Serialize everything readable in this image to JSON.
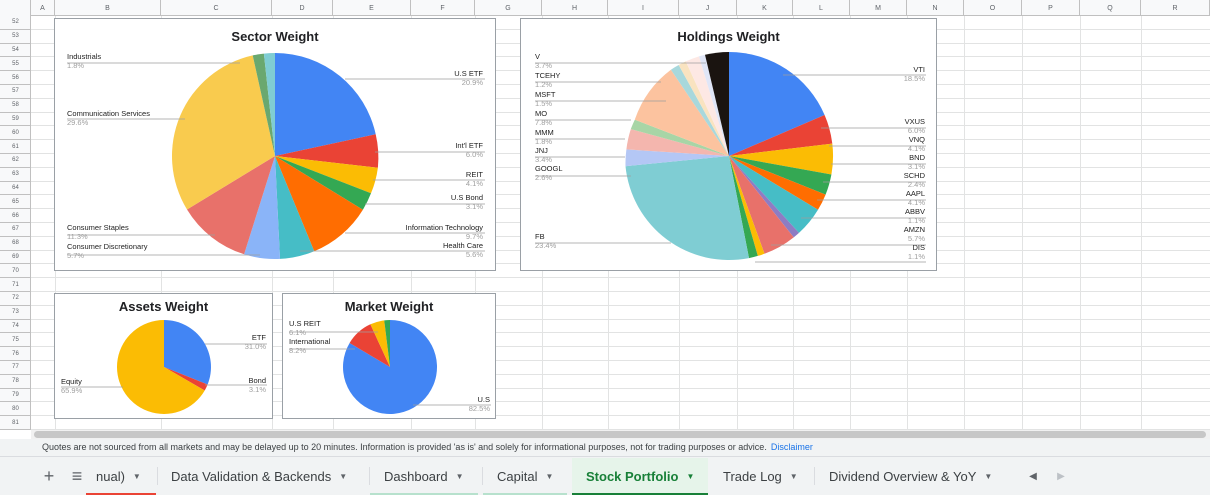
{
  "columns": [
    "A",
    "B",
    "C",
    "D",
    "E",
    "F",
    "G",
    "H",
    "I",
    "J",
    "K",
    "L",
    "M",
    "N",
    "O",
    "P",
    "Q",
    "R"
  ],
  "rows": [
    "52",
    "53",
    "54",
    "55",
    "56",
    "57",
    "58",
    "59",
    "60",
    "61",
    "62",
    "63",
    "64",
    "65",
    "66",
    "67",
    "68",
    "69",
    "70",
    "71",
    "72",
    "73",
    "74",
    "75",
    "76",
    "77",
    "78",
    "79",
    "80",
    "81"
  ],
  "charts": {
    "sector": {
      "title": "Sector Weight",
      "labels": {
        "industrials": "Industrials",
        "industrials_pct": "1.8%",
        "comm": "Communication Services",
        "comm_pct": "29.6%",
        "staples": "Consumer Staples",
        "staples_pct": "11.3%",
        "discretionary": "Consumer Discretionary",
        "discretionary_pct": "5.7%",
        "us_etf": "U.S ETF",
        "us_etf_pct": "20.9%",
        "intl_etf": "Int'l ETF",
        "intl_etf_pct": "6.0%",
        "reit": "REIT",
        "reit_pct": "4.1%",
        "us_bond": "U.S Bond",
        "us_bond_pct": "3.1%",
        "infotech": "Information Technology",
        "infotech_pct": "9.7%",
        "health": "Health Care",
        "health_pct": "5.6%"
      }
    },
    "holdings": {
      "title": "Holdings Weight",
      "labels": {
        "v": "V",
        "v_pct": "3.7%",
        "tcehy": "TCEHY",
        "tcehy_pct": "1.2%",
        "msft": "MSFT",
        "msft_pct": "1.5%",
        "mo": "MO",
        "mo_pct": "7.8%",
        "mmm": "MMM",
        "mmm_pct": "1.8%",
        "jnj": "JNJ",
        "jnj_pct": "3.4%",
        "googl": "GOOGL",
        "googl_pct": "2.6%",
        "fb": "FB",
        "fb_pct": "23.4%",
        "vti": "VTI",
        "vti_pct": "18.5%",
        "vxus": "VXUS",
        "vxus_pct": "6.0%",
        "vnq": "VNQ",
        "vnq_pct": "4.1%",
        "bnd": "BND",
        "bnd_pct": "3.1%",
        "schd": "SCHD",
        "schd_pct": "2.4%",
        "aapl": "AAPL",
        "aapl_pct": "4.1%",
        "abbv": "ABBV",
        "abbv_pct": "1.1%",
        "amzn": "AMZN",
        "amzn_pct": "5.7%",
        "dis": "DIS",
        "dis_pct": "1.1%"
      }
    },
    "assets": {
      "title": "Assets Weight",
      "labels": {
        "etf": "ETF",
        "etf_pct": "31.0%",
        "bond": "Bond",
        "bond_pct": "3.1%",
        "equity": "Equity",
        "equity_pct": "65.9%"
      }
    },
    "market": {
      "title": "Market Weight",
      "labels": {
        "us_reit": "U.S REIT",
        "us_reit_pct": "6.1%",
        "intl": "International",
        "intl_pct": "8.2%",
        "us": "U.S",
        "us_pct": "82.5%"
      }
    }
  },
  "info": {
    "text": "Quotes are not sourced from all markets and may be delayed up to 20 minutes. Information is provided 'as is' and solely for informational purposes, not for trading purposes or advice.",
    "link": "Disclaimer"
  },
  "tabs": {
    "add_icon": "+",
    "list_icon": "≡",
    "items": [
      {
        "label": "nual)"
      },
      {
        "label": "Data Validation & Backends"
      },
      {
        "label": "Dashboard"
      },
      {
        "label": "Capital"
      },
      {
        "label": "Stock Portfolio"
      },
      {
        "label": "Trade Log"
      },
      {
        "label": "Dividend Overview & YoY"
      }
    ],
    "prev_icon": "◀",
    "next_icon": "▶"
  },
  "colors": {
    "blue": "#4285f4",
    "red": "#ea4335",
    "yellow": "#fbbc04",
    "green": "#34a853",
    "orange": "#ff6d01",
    "teal": "#46bdc6",
    "salmon": "#e8716a",
    "lavender": "#8ab4f8",
    "lightyellow": "#f9cb4e",
    "seagreen": "#6aa86f",
    "lightteal": "#7fcdd3",
    "peach": "#fcc39f",
    "black": "#1a1410",
    "tab_green": "#188038"
  }
}
